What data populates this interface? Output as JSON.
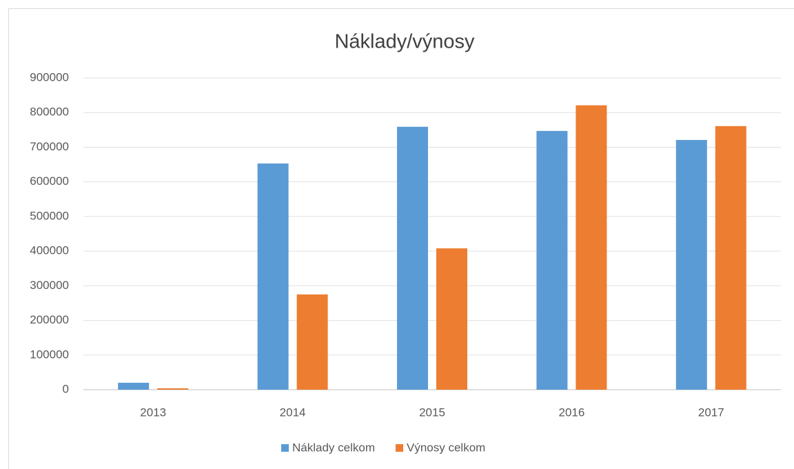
{
  "chart_data": {
    "type": "bar",
    "title": "Náklady/výnosy",
    "categories": [
      "2013",
      "2014",
      "2015",
      "2016",
      "2017"
    ],
    "series": [
      {
        "name": "Náklady celkom",
        "color": "#5b9bd5",
        "values": [
          20000,
          653000,
          759000,
          747000,
          721000
        ]
      },
      {
        "name": "Výnosy celkom",
        "color": "#ed7d31",
        "values": [
          4000,
          275000,
          408000,
          821000,
          761000
        ]
      }
    ],
    "ylim": [
      0,
      900000
    ],
    "yticks": [
      0,
      100000,
      200000,
      300000,
      400000,
      500000,
      600000,
      700000,
      800000,
      900000
    ],
    "grid": true,
    "legend": "bottom"
  }
}
